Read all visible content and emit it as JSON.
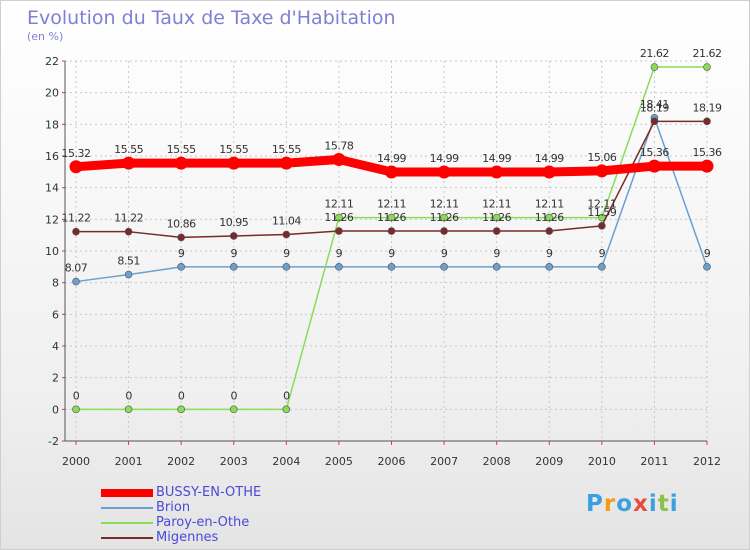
{
  "chart_data": {
    "type": "line",
    "title": "Evolution du Taux de Taxe d'Habitation",
    "subtitle": "(en %)",
    "x": [
      "2000",
      "2001",
      "2002",
      "2003",
      "2004",
      "2005",
      "2006",
      "2007",
      "2008",
      "2009",
      "2010",
      "2011",
      "2012"
    ],
    "ylim": [
      -2,
      22
    ],
    "yticks": [
      -2,
      0,
      2,
      4,
      6,
      8,
      10,
      12,
      14,
      16,
      18,
      20,
      22
    ],
    "series": [
      {
        "name": "BUSSY-EN-OTHE",
        "color": "#ff0000",
        "values": [
          15.32,
          15.55,
          15.55,
          15.55,
          15.55,
          15.78,
          14.99,
          14.99,
          14.99,
          14.99,
          15.06,
          15.36,
          15.36
        ],
        "labels": [
          "15.32",
          "15.55",
          "15.55",
          "15.55",
          "15.55",
          "15.78",
          "14.99",
          "14.99",
          "14.99",
          "14.99",
          "15.06",
          "15.36",
          "15.36"
        ]
      },
      {
        "name": "Brion",
        "color": "#6a9fd0",
        "values": [
          8.07,
          8.51,
          9,
          9,
          9,
          9,
          9,
          9,
          9,
          9,
          9,
          18.41,
          9
        ],
        "labels": [
          "8.07",
          "8.51",
          "9",
          "9",
          "9",
          "9",
          "9",
          "9",
          "9",
          "9",
          "9",
          "18.41",
          "9"
        ]
      },
      {
        "name": "Paroy-en-Othe",
        "color": "#88dd55",
        "values": [
          0,
          0,
          0,
          0,
          0,
          12.11,
          12.11,
          12.11,
          12.11,
          12.11,
          12.11,
          21.62,
          21.62
        ],
        "labels": [
          "0",
          "0",
          "0",
          "0",
          "0",
          "12.11",
          "12.11",
          "12.11",
          "12.11",
          "12.11",
          "12.11",
          "21.62",
          "21.62"
        ]
      },
      {
        "name": "Migennes",
        "color": "#7a2a2a",
        "values": [
          11.22,
          11.22,
          10.86,
          10.95,
          11.04,
          11.26,
          11.26,
          11.26,
          11.26,
          11.26,
          11.59,
          18.19,
          18.19
        ],
        "labels": [
          "11.22",
          "11.22",
          "10.86",
          "10.95",
          "11.04",
          "11.26",
          "11.26",
          "11.26",
          "11.26",
          "11.26",
          "11.59",
          "18.19",
          "18.19"
        ]
      }
    ]
  },
  "legend": {
    "items": [
      {
        "label": "BUSSY-EN-OTHE",
        "color": "#ff0000"
      },
      {
        "label": "Brion",
        "color": "#6a9fd0"
      },
      {
        "label": "Paroy-en-Othe",
        "color": "#88dd55"
      },
      {
        "label": "Migennes",
        "color": "#7a2a2a"
      }
    ]
  },
  "logo": {
    "letters": [
      "P",
      "r",
      "o",
      "x",
      "i",
      "t",
      "i"
    ],
    "colors": [
      "#3aa0e0",
      "#f39c12",
      "#3aa0e0",
      "#e74c3c",
      "#3aa0e0",
      "#8bc34a",
      "#3aa0e0"
    ]
  }
}
